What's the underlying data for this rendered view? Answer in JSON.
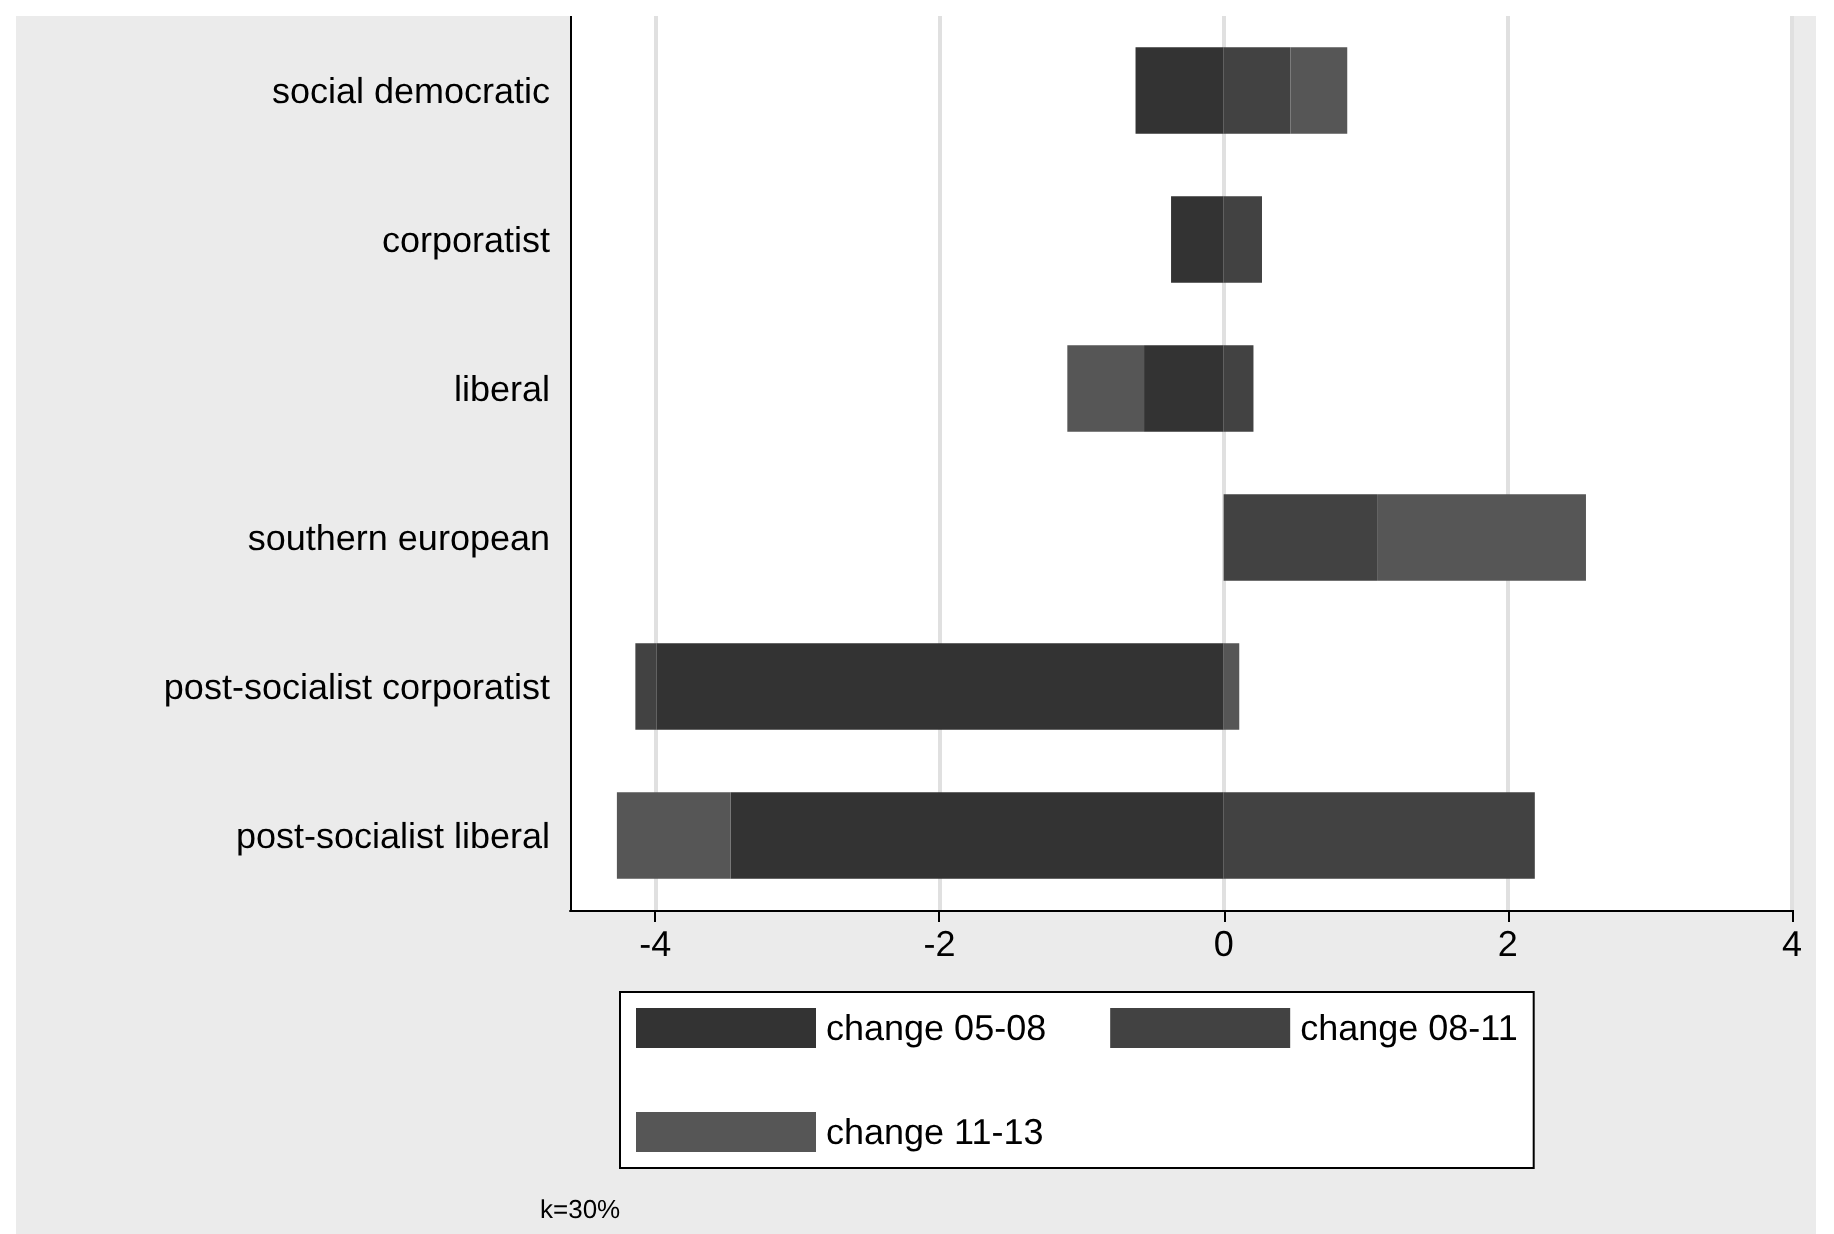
{
  "chart_data": {
    "type": "bar",
    "orientation": "horizontal",
    "stacked": true,
    "categories": [
      "social democratic",
      "corporatist",
      "liberal",
      "southern european",
      "post-socialist corporatist",
      "post-socialist liberal"
    ],
    "series": [
      {
        "name": "change 05-08",
        "color": "#333333",
        "values": [
          -0.62,
          -0.37,
          -0.56,
          null,
          -3.99,
          -3.47
        ]
      },
      {
        "name": "change 08-11",
        "color": "#424242",
        "values": [
          0.47,
          0.27,
          0.21,
          1.08,
          -0.15,
          2.19
        ]
      },
      {
        "name": "change 11-13",
        "color": "#565656",
        "values": [
          0.4,
          null,
          -0.54,
          1.47,
          0.11,
          -0.8
        ]
      }
    ],
    "xlim": [
      -4.6,
      4
    ],
    "xticks": [
      -4,
      -2,
      0,
      2,
      4
    ],
    "grid": "x",
    "legend": "bottom",
    "annotations": [
      "k=30%"
    ]
  }
}
